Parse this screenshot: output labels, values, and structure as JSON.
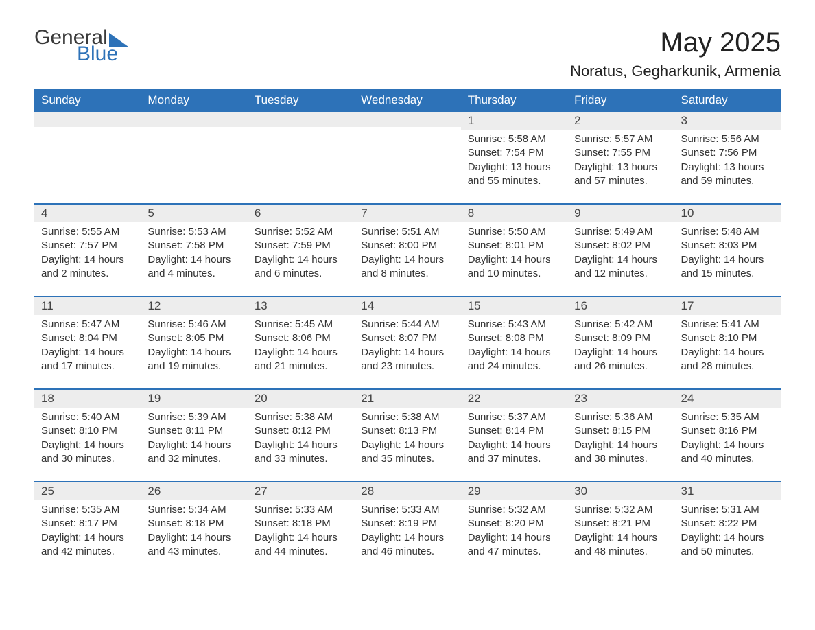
{
  "logo": {
    "word1": "General",
    "word2": "Blue"
  },
  "title": "May 2025",
  "location": "Noratus, Gegharkunik, Armenia",
  "colors": {
    "header_bg": "#2d72b8",
    "header_text": "#ffffff",
    "row_border": "#2d72b8",
    "daynum_bg": "#ededed",
    "body_text": "#333333",
    "page_bg": "#ffffff"
  },
  "weekdays": [
    "Sunday",
    "Monday",
    "Tuesday",
    "Wednesday",
    "Thursday",
    "Friday",
    "Saturday"
  ],
  "weeks": [
    [
      {
        "day": "",
        "sunrise": "",
        "sunset": "",
        "daylight": ""
      },
      {
        "day": "",
        "sunrise": "",
        "sunset": "",
        "daylight": ""
      },
      {
        "day": "",
        "sunrise": "",
        "sunset": "",
        "daylight": ""
      },
      {
        "day": "",
        "sunrise": "",
        "sunset": "",
        "daylight": ""
      },
      {
        "day": "1",
        "sunrise": "Sunrise: 5:58 AM",
        "sunset": "Sunset: 7:54 PM",
        "daylight": "Daylight: 13 hours and 55 minutes."
      },
      {
        "day": "2",
        "sunrise": "Sunrise: 5:57 AM",
        "sunset": "Sunset: 7:55 PM",
        "daylight": "Daylight: 13 hours and 57 minutes."
      },
      {
        "day": "3",
        "sunrise": "Sunrise: 5:56 AM",
        "sunset": "Sunset: 7:56 PM",
        "daylight": "Daylight: 13 hours and 59 minutes."
      }
    ],
    [
      {
        "day": "4",
        "sunrise": "Sunrise: 5:55 AM",
        "sunset": "Sunset: 7:57 PM",
        "daylight": "Daylight: 14 hours and 2 minutes."
      },
      {
        "day": "5",
        "sunrise": "Sunrise: 5:53 AM",
        "sunset": "Sunset: 7:58 PM",
        "daylight": "Daylight: 14 hours and 4 minutes."
      },
      {
        "day": "6",
        "sunrise": "Sunrise: 5:52 AM",
        "sunset": "Sunset: 7:59 PM",
        "daylight": "Daylight: 14 hours and 6 minutes."
      },
      {
        "day": "7",
        "sunrise": "Sunrise: 5:51 AM",
        "sunset": "Sunset: 8:00 PM",
        "daylight": "Daylight: 14 hours and 8 minutes."
      },
      {
        "day": "8",
        "sunrise": "Sunrise: 5:50 AM",
        "sunset": "Sunset: 8:01 PM",
        "daylight": "Daylight: 14 hours and 10 minutes."
      },
      {
        "day": "9",
        "sunrise": "Sunrise: 5:49 AM",
        "sunset": "Sunset: 8:02 PM",
        "daylight": "Daylight: 14 hours and 12 minutes."
      },
      {
        "day": "10",
        "sunrise": "Sunrise: 5:48 AM",
        "sunset": "Sunset: 8:03 PM",
        "daylight": "Daylight: 14 hours and 15 minutes."
      }
    ],
    [
      {
        "day": "11",
        "sunrise": "Sunrise: 5:47 AM",
        "sunset": "Sunset: 8:04 PM",
        "daylight": "Daylight: 14 hours and 17 minutes."
      },
      {
        "day": "12",
        "sunrise": "Sunrise: 5:46 AM",
        "sunset": "Sunset: 8:05 PM",
        "daylight": "Daylight: 14 hours and 19 minutes."
      },
      {
        "day": "13",
        "sunrise": "Sunrise: 5:45 AM",
        "sunset": "Sunset: 8:06 PM",
        "daylight": "Daylight: 14 hours and 21 minutes."
      },
      {
        "day": "14",
        "sunrise": "Sunrise: 5:44 AM",
        "sunset": "Sunset: 8:07 PM",
        "daylight": "Daylight: 14 hours and 23 minutes."
      },
      {
        "day": "15",
        "sunrise": "Sunrise: 5:43 AM",
        "sunset": "Sunset: 8:08 PM",
        "daylight": "Daylight: 14 hours and 24 minutes."
      },
      {
        "day": "16",
        "sunrise": "Sunrise: 5:42 AM",
        "sunset": "Sunset: 8:09 PM",
        "daylight": "Daylight: 14 hours and 26 minutes."
      },
      {
        "day": "17",
        "sunrise": "Sunrise: 5:41 AM",
        "sunset": "Sunset: 8:10 PM",
        "daylight": "Daylight: 14 hours and 28 minutes."
      }
    ],
    [
      {
        "day": "18",
        "sunrise": "Sunrise: 5:40 AM",
        "sunset": "Sunset: 8:10 PM",
        "daylight": "Daylight: 14 hours and 30 minutes."
      },
      {
        "day": "19",
        "sunrise": "Sunrise: 5:39 AM",
        "sunset": "Sunset: 8:11 PM",
        "daylight": "Daylight: 14 hours and 32 minutes."
      },
      {
        "day": "20",
        "sunrise": "Sunrise: 5:38 AM",
        "sunset": "Sunset: 8:12 PM",
        "daylight": "Daylight: 14 hours and 33 minutes."
      },
      {
        "day": "21",
        "sunrise": "Sunrise: 5:38 AM",
        "sunset": "Sunset: 8:13 PM",
        "daylight": "Daylight: 14 hours and 35 minutes."
      },
      {
        "day": "22",
        "sunrise": "Sunrise: 5:37 AM",
        "sunset": "Sunset: 8:14 PM",
        "daylight": "Daylight: 14 hours and 37 minutes."
      },
      {
        "day": "23",
        "sunrise": "Sunrise: 5:36 AM",
        "sunset": "Sunset: 8:15 PM",
        "daylight": "Daylight: 14 hours and 38 minutes."
      },
      {
        "day": "24",
        "sunrise": "Sunrise: 5:35 AM",
        "sunset": "Sunset: 8:16 PM",
        "daylight": "Daylight: 14 hours and 40 minutes."
      }
    ],
    [
      {
        "day": "25",
        "sunrise": "Sunrise: 5:35 AM",
        "sunset": "Sunset: 8:17 PM",
        "daylight": "Daylight: 14 hours and 42 minutes."
      },
      {
        "day": "26",
        "sunrise": "Sunrise: 5:34 AM",
        "sunset": "Sunset: 8:18 PM",
        "daylight": "Daylight: 14 hours and 43 minutes."
      },
      {
        "day": "27",
        "sunrise": "Sunrise: 5:33 AM",
        "sunset": "Sunset: 8:18 PM",
        "daylight": "Daylight: 14 hours and 44 minutes."
      },
      {
        "day": "28",
        "sunrise": "Sunrise: 5:33 AM",
        "sunset": "Sunset: 8:19 PM",
        "daylight": "Daylight: 14 hours and 46 minutes."
      },
      {
        "day": "29",
        "sunrise": "Sunrise: 5:32 AM",
        "sunset": "Sunset: 8:20 PM",
        "daylight": "Daylight: 14 hours and 47 minutes."
      },
      {
        "day": "30",
        "sunrise": "Sunrise: 5:32 AM",
        "sunset": "Sunset: 8:21 PM",
        "daylight": "Daylight: 14 hours and 48 minutes."
      },
      {
        "day": "31",
        "sunrise": "Sunrise: 5:31 AM",
        "sunset": "Sunset: 8:22 PM",
        "daylight": "Daylight: 14 hours and 50 minutes."
      }
    ]
  ]
}
